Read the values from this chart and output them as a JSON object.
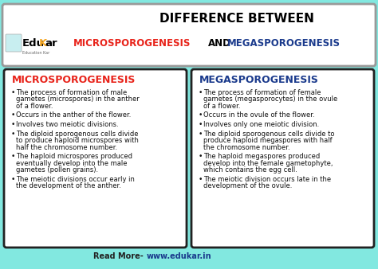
{
  "bg_color": "#82e8e0",
  "header_bg": "#ffffff",
  "title_line1": "DIFFERENCE BETWEEN",
  "title_color": "#000000",
  "micro_color": "#e8231a",
  "mega_color": "#1a3a8c",
  "edukar_black": "#000000",
  "edukar_k_color": "#f5a623",
  "box_bg": "#ffffff",
  "box_border": "#222222",
  "left_heading": "MICROSPOROGENESIS",
  "right_heading": "MEGASPOROGENESIS",
  "left_bullets": [
    "The process of formation of male\ngametes (microspores) in the anther\nof a flower.",
    "Occurs in the anther of the flower.",
    "Involves two meiotic divisions.",
    "The diploid sporogenous cells divide\nto produce haploid microspores with\nhalf the chromosome number.",
    "The haploid microspores produced\neventually develop into the male\ngametes (pollen grains).",
    "The meiotic divisions occur early in\nthe development of the anther."
  ],
  "right_bullets": [
    "The process of formation of female\ngametes (megasporocytes) in the ovule\nof a flower.",
    "Occurs in the ovule of the flower.",
    "Involves only one meiotic division.",
    "The diploid sporogenous cells divide to\nproduce haploid megaspores with half\nthe chromosome number.",
    "The haploid megaspores produced\ndevelop into the female gametophyte,\nwhich contains the egg cell.",
    "The meiotic division occurs late in the\ndevelopment of the ovule."
  ],
  "footer_text1": "Read More- ",
  "footer_text2": "www.edukar.in",
  "footer_color1": "#222222",
  "footer_color2": "#1a3a8c",
  "bullet_char": "•"
}
